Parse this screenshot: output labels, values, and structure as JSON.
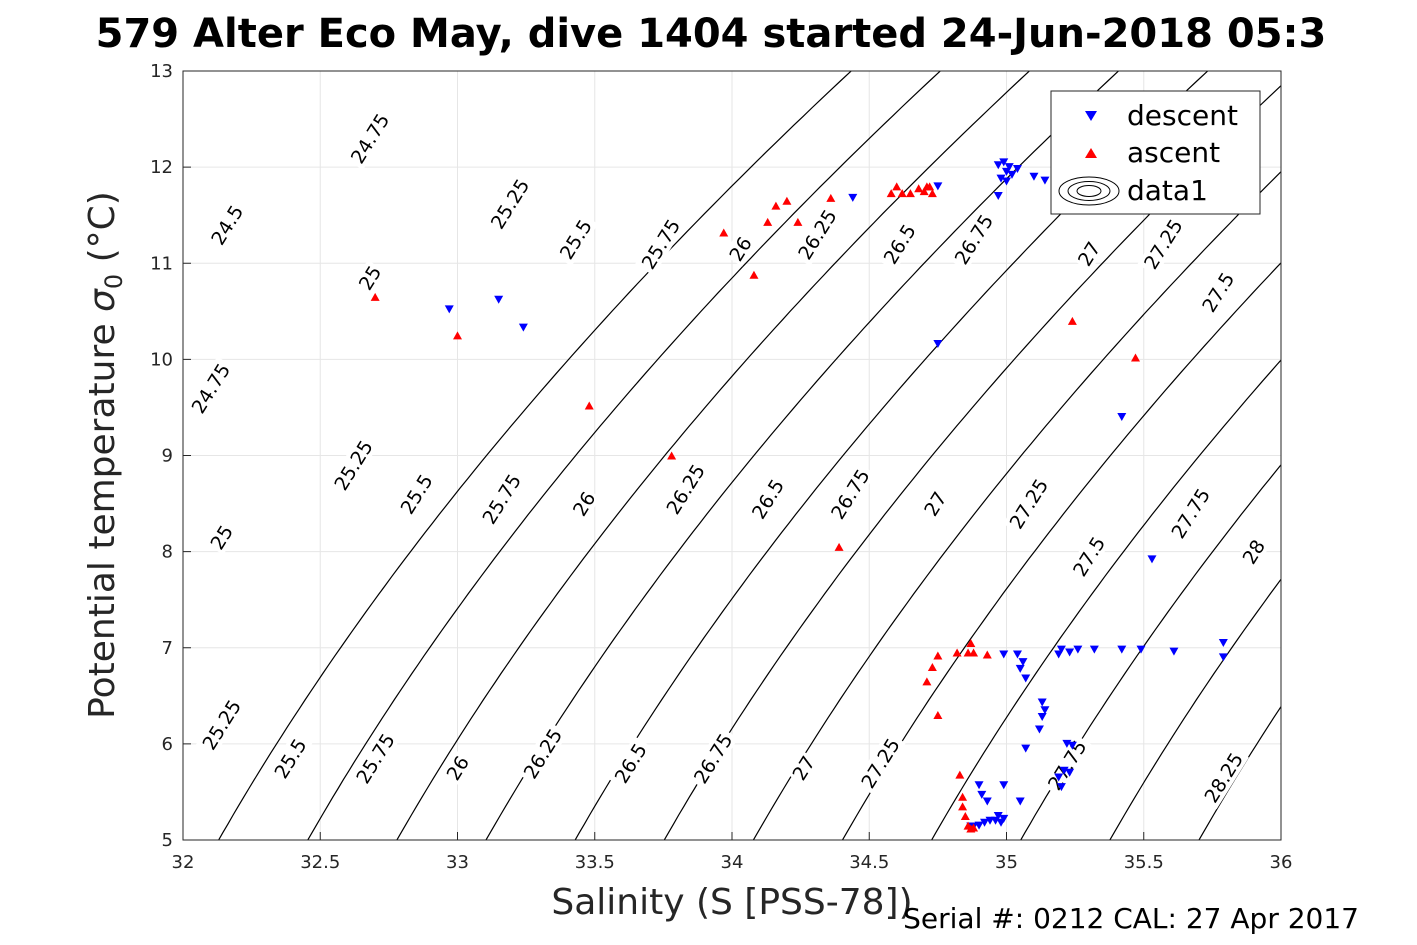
{
  "chart_data": {
    "type": "scatter",
    "title": "579 Alter Eco May, dive 1404 started 24-Jun-2018 05:3",
    "xlabel": "Salinity (S [PSS-78])",
    "ylabel_main": "Potential temperature ",
    "ylabel_sym": "σ",
    "ylabel_sub": "0",
    "ylabel_unit": " (°C)",
    "footer": "Serial #: 0212  CAL: 27 Apr 2017",
    "xlim": [
      32,
      36
    ],
    "ylim": [
      5,
      13
    ],
    "xticks": [
      32,
      32.5,
      33,
      33.5,
      34,
      34.5,
      35,
      35.5,
      36
    ],
    "yticks": [
      5,
      6,
      7,
      8,
      9,
      10,
      11,
      12,
      13
    ],
    "grid": true,
    "legend_position": "top-right",
    "legend": [
      "descent",
      "ascent",
      "data1"
    ],
    "colors": {
      "descent": "#0000ff",
      "ascent": "#ff0000",
      "contour": "#000000",
      "grid": "#e6e6e6"
    },
    "contour_levels": [
      24.5,
      24.75,
      25,
      25.25,
      25.5,
      25.75,
      26,
      26.25,
      26.5,
      26.75,
      27,
      27.25,
      27.5,
      27.75,
      28,
      28.25
    ],
    "contour_labels": [
      {
        "text": "24.5",
        "x": 32.16,
        "y": 11.4
      },
      {
        "text": "24.75",
        "x": 32.68,
        "y": 12.3
      },
      {
        "text": "25.25",
        "x": 33.19,
        "y": 11.62
      },
      {
        "text": "25",
        "x": 32.68,
        "y": 10.85
      },
      {
        "text": "25.5",
        "x": 33.43,
        "y": 11.25
      },
      {
        "text": "25.75",
        "x": 33.74,
        "y": 11.2
      },
      {
        "text": "26",
        "x": 34.03,
        "y": 11.15
      },
      {
        "text": "26.25",
        "x": 34.31,
        "y": 11.3
      },
      {
        "text": "26.5",
        "x": 34.61,
        "y": 11.2
      },
      {
        "text": "26.75",
        "x": 34.88,
        "y": 11.25
      },
      {
        "text": "27",
        "x": 35.3,
        "y": 11.1
      },
      {
        "text": "27.25",
        "x": 35.57,
        "y": 11.2
      },
      {
        "text": "27.5",
        "x": 35.77,
        "y": 10.7
      },
      {
        "text": "24.75",
        "x": 32.1,
        "y": 9.7
      },
      {
        "text": "25.25",
        "x": 32.62,
        "y": 8.9
      },
      {
        "text": "25",
        "x": 32.14,
        "y": 8.15
      },
      {
        "text": "25.5",
        "x": 32.85,
        "y": 8.6
      },
      {
        "text": "25.75",
        "x": 33.16,
        "y": 8.55
      },
      {
        "text": "26",
        "x": 33.46,
        "y": 8.5
      },
      {
        "text": "26.25",
        "x": 33.83,
        "y": 8.65
      },
      {
        "text": "26.5",
        "x": 34.13,
        "y": 8.55
      },
      {
        "text": "26.75",
        "x": 34.43,
        "y": 8.6
      },
      {
        "text": "27",
        "x": 34.74,
        "y": 8.5
      },
      {
        "text": "27.25",
        "x": 35.08,
        "y": 8.5
      },
      {
        "text": "27.5",
        "x": 35.3,
        "y": 7.95
      },
      {
        "text": "27.75",
        "x": 35.67,
        "y": 8.4
      },
      {
        "text": "28",
        "x": 35.9,
        "y": 8.0
      },
      {
        "text": "25.25",
        "x": 32.14,
        "y": 6.2
      },
      {
        "text": "25.5",
        "x": 32.39,
        "y": 5.85
      },
      {
        "text": "25.75",
        "x": 32.7,
        "y": 5.85
      },
      {
        "text": "26",
        "x": 33.0,
        "y": 5.75
      },
      {
        "text": "26.25",
        "x": 33.31,
        "y": 5.9
      },
      {
        "text": "26.5",
        "x": 33.63,
        "y": 5.8
      },
      {
        "text": "26.75",
        "x": 33.93,
        "y": 5.85
      },
      {
        "text": "27",
        "x": 34.26,
        "y": 5.75
      },
      {
        "text": "27.25",
        "x": 34.54,
        "y": 5.8
      },
      {
        "text": "27.75",
        "x": 35.22,
        "y": 5.78
      },
      {
        "text": "28.25",
        "x": 35.79,
        "y": 5.65
      }
    ],
    "series": [
      {
        "name": "descent",
        "marker": "triangle-down",
        "points": [
          [
            32.97,
            10.52
          ],
          [
            33.15,
            10.62
          ],
          [
            33.24,
            10.33
          ],
          [
            34.44,
            11.68
          ],
          [
            34.75,
            11.8
          ],
          [
            34.75,
            10.16
          ],
          [
            34.97,
            11.7
          ],
          [
            34.97,
            12.02
          ],
          [
            34.98,
            11.88
          ],
          [
            34.99,
            12.05
          ],
          [
            35.0,
            11.95
          ],
          [
            35.0,
            11.85
          ],
          [
            35.01,
            12.0
          ],
          [
            35.02,
            11.92
          ],
          [
            35.04,
            11.98
          ],
          [
            35.1,
            11.9
          ],
          [
            35.14,
            11.86
          ],
          [
            35.42,
            9.4
          ],
          [
            35.53,
            7.92
          ],
          [
            34.99,
            6.93
          ],
          [
            35.04,
            6.93
          ],
          [
            35.06,
            6.85
          ],
          [
            35.05,
            6.78
          ],
          [
            35.07,
            6.68
          ],
          [
            35.13,
            6.43
          ],
          [
            35.14,
            6.35
          ],
          [
            35.13,
            6.28
          ],
          [
            35.12,
            6.15
          ],
          [
            35.07,
            5.95
          ],
          [
            35.22,
            6.0
          ],
          [
            35.24,
            5.98
          ],
          [
            35.21,
            5.72
          ],
          [
            35.19,
            5.65
          ],
          [
            35.23,
            5.7
          ],
          [
            35.2,
            5.55
          ],
          [
            35.05,
            5.4
          ],
          [
            34.99,
            5.57
          ],
          [
            34.93,
            5.4
          ],
          [
            34.91,
            5.47
          ],
          [
            34.9,
            5.57
          ],
          [
            34.97,
            5.25
          ],
          [
            34.96,
            5.2
          ],
          [
            34.99,
            5.22
          ],
          [
            34.98,
            5.18
          ],
          [
            34.94,
            5.2
          ],
          [
            34.92,
            5.18
          ],
          [
            34.9,
            5.15
          ],
          [
            34.88,
            5.14
          ],
          [
            34.87,
            5.14
          ],
          [
            35.19,
            6.93
          ],
          [
            35.2,
            6.98
          ],
          [
            35.23,
            6.95
          ],
          [
            35.26,
            6.98
          ],
          [
            35.32,
            6.98
          ],
          [
            35.42,
            6.98
          ],
          [
            35.49,
            6.98
          ],
          [
            35.61,
            6.96
          ],
          [
            35.79,
            7.05
          ],
          [
            35.79,
            6.9
          ]
        ]
      },
      {
        "name": "ascent",
        "marker": "triangle-up",
        "points": [
          [
            32.7,
            10.65
          ],
          [
            33.0,
            10.25
          ],
          [
            33.48,
            9.52
          ],
          [
            33.78,
            9.0
          ],
          [
            33.97,
            11.32
          ],
          [
            34.08,
            10.88
          ],
          [
            34.13,
            11.43
          ],
          [
            34.16,
            11.6
          ],
          [
            34.2,
            11.65
          ],
          [
            34.24,
            11.43
          ],
          [
            34.36,
            11.68
          ],
          [
            34.58,
            11.73
          ],
          [
            34.6,
            11.8
          ],
          [
            34.62,
            11.73
          ],
          [
            34.65,
            11.73
          ],
          [
            34.68,
            11.78
          ],
          [
            34.7,
            11.75
          ],
          [
            34.71,
            11.8
          ],
          [
            34.73,
            11.73
          ],
          [
            34.72,
            11.8
          ],
          [
            35.24,
            10.4
          ],
          [
            35.47,
            10.02
          ],
          [
            34.39,
            8.05
          ],
          [
            34.73,
            6.8
          ],
          [
            34.71,
            6.65
          ],
          [
            34.75,
            6.92
          ],
          [
            34.75,
            6.3
          ],
          [
            34.82,
            6.95
          ],
          [
            34.86,
            6.95
          ],
          [
            34.87,
            7.05
          ],
          [
            34.88,
            6.95
          ],
          [
            34.93,
            6.93
          ],
          [
            34.83,
            5.68
          ],
          [
            34.84,
            5.45
          ],
          [
            34.84,
            5.35
          ],
          [
            34.85,
            5.25
          ],
          [
            34.86,
            5.15
          ],
          [
            34.87,
            5.12
          ],
          [
            34.88,
            5.13
          ]
        ]
      }
    ]
  }
}
